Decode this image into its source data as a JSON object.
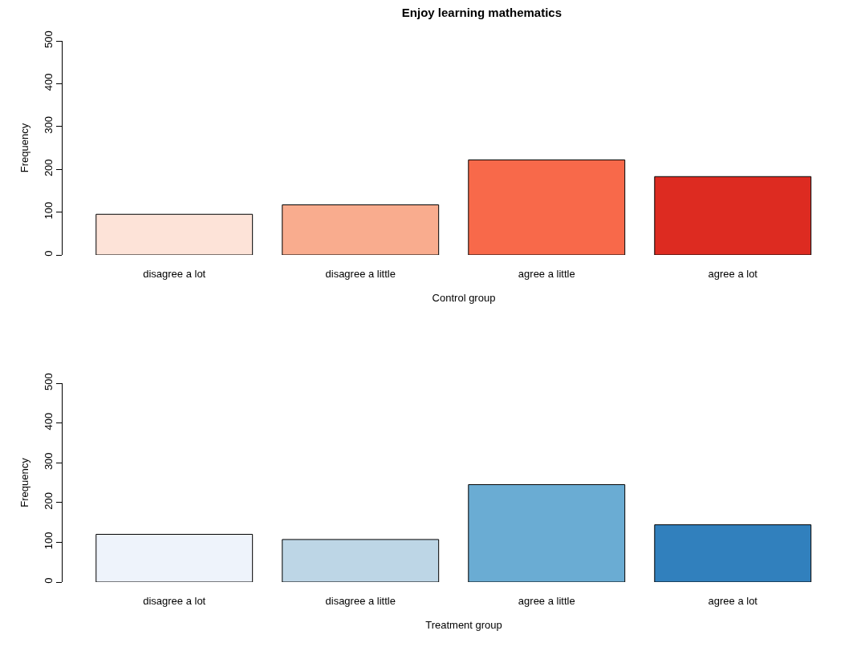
{
  "chart_data": [
    {
      "type": "bar",
      "title": "Enjoy learning mathematics",
      "xlabel": "Control group",
      "ylabel": "Frequency",
      "categories": [
        "disagree a lot",
        "disagree a little",
        "agree a little",
        "agree a lot"
      ],
      "values": [
        95,
        117,
        222,
        183
      ],
      "colors": [
        "#fde3d8",
        "#f9ac8e",
        "#f8694a",
        "#dd2b21"
      ],
      "ylim": [
        0,
        500
      ],
      "yticks": [
        0,
        100,
        200,
        300,
        400,
        500
      ],
      "grid": false
    },
    {
      "type": "bar",
      "xlabel": "Treatment group",
      "ylabel": "Frequency",
      "categories": [
        "disagree a lot",
        "disagree a little",
        "agree a little",
        "agree a lot"
      ],
      "values": [
        120,
        107,
        245,
        144
      ],
      "colors": [
        "#eef3fb",
        "#bdd6e6",
        "#6aacd3",
        "#3180bd"
      ],
      "ylim": [
        0,
        500
      ],
      "yticks": [
        0,
        100,
        200,
        300,
        400,
        500
      ],
      "grid": false
    }
  ]
}
